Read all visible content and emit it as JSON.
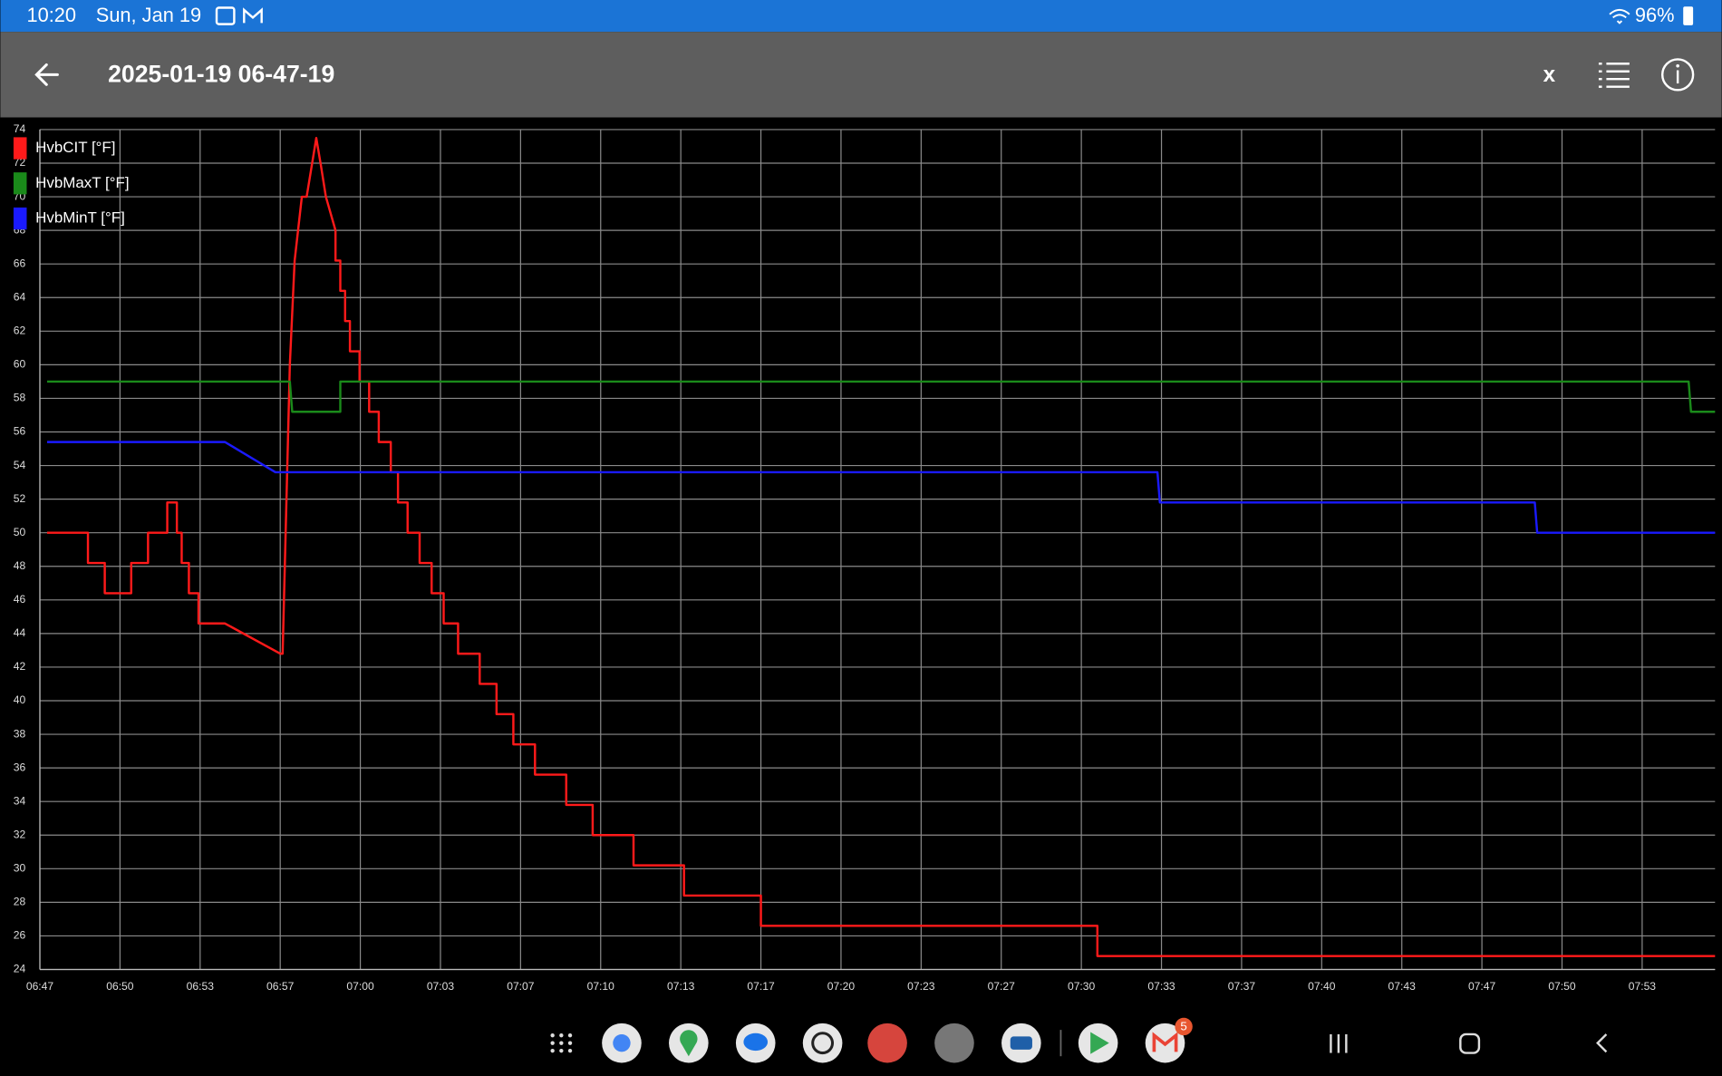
{
  "status_bar": {
    "time": "10:20",
    "date": "Sun, Jan 19",
    "battery": "96%"
  },
  "app_bar": {
    "title": "2025-01-19 06-47-19",
    "close_label": "x"
  },
  "nav_bar": {
    "gmail_badge": "5"
  },
  "chart_data": {
    "type": "line",
    "legend": "top-left",
    "grid": true,
    "xlim": [
      407,
      476.7
    ],
    "xticks": [
      {
        "value": 407,
        "label": "06:47"
      },
      {
        "value": 410.333,
        "label": "06:50"
      },
      {
        "value": 413.667,
        "label": "06:53"
      },
      {
        "value": 417,
        "label": "06:57"
      },
      {
        "value": 420.333,
        "label": "07:00"
      },
      {
        "value": 423.667,
        "label": "07:03"
      },
      {
        "value": 427,
        "label": "07:07"
      },
      {
        "value": 430.333,
        "label": "07:10"
      },
      {
        "value": 433.667,
        "label": "07:13"
      },
      {
        "value": 437,
        "label": "07:17"
      },
      {
        "value": 440.333,
        "label": "07:20"
      },
      {
        "value": 443.667,
        "label": "07:23"
      },
      {
        "value": 447,
        "label": "07:27"
      },
      {
        "value": 450.333,
        "label": "07:30"
      },
      {
        "value": 453.667,
        "label": "07:33"
      },
      {
        "value": 457,
        "label": "07:37"
      },
      {
        "value": 460.333,
        "label": "07:40"
      },
      {
        "value": 463.667,
        "label": "07:43"
      },
      {
        "value": 467,
        "label": "07:47"
      },
      {
        "value": 470.333,
        "label": "07:50"
      },
      {
        "value": 473.667,
        "label": "07:53"
      }
    ],
    "ylim": [
      24,
      74
    ],
    "yticks": [
      24,
      26,
      28,
      30,
      32,
      34,
      36,
      38,
      40,
      42,
      44,
      46,
      48,
      50,
      52,
      54,
      56,
      58,
      60,
      62,
      64,
      66,
      68,
      70,
      72,
      74
    ],
    "series": [
      {
        "name": "HvbCIT [°F]",
        "color": "#ff1a1a",
        "x": [
          407.3,
          409.0,
          409.0,
          409.7,
          409.7,
          410.8,
          410.8,
          411.5,
          411.5,
          412.3,
          412.3,
          412.7,
          412.7,
          412.9,
          412.9,
          413.2,
          413.2,
          413.6,
          413.6,
          414.7,
          417.0,
          417.1,
          417.4,
          417.6,
          417.9,
          418.1,
          418.5,
          418.7,
          418.9,
          419.3,
          419.3,
          419.5,
          419.5,
          419.7,
          419.7,
          419.9,
          419.9,
          420.3,
          420.3,
          420.7,
          420.7,
          421.1,
          421.1,
          421.6,
          421.6,
          421.9,
          421.9,
          422.3,
          422.3,
          422.8,
          422.8,
          423.3,
          423.3,
          423.8,
          423.8,
          424.4,
          424.4,
          425.3,
          425.3,
          426.0,
          426.0,
          426.7,
          426.7,
          427.6,
          427.6,
          428.9,
          428.9,
          430.0,
          430.0,
          431.7,
          431.7,
          433.8,
          433.8,
          437.0,
          437.0,
          451.0,
          451.0,
          476.7
        ],
        "values": [
          50,
          50,
          48.2,
          48.2,
          46.4,
          46.4,
          48.2,
          48.2,
          50,
          50,
          51.8,
          51.8,
          50,
          50,
          48.2,
          48.2,
          46.4,
          46.4,
          44.6,
          44.6,
          42.8,
          42.8,
          60,
          66.2,
          70,
          70,
          73.5,
          71.8,
          70,
          68,
          66.2,
          66.2,
          64.4,
          64.4,
          62.6,
          62.6,
          60.8,
          60.8,
          59,
          59,
          57.2,
          57.2,
          55.4,
          55.4,
          53.6,
          53.6,
          51.8,
          51.8,
          50,
          50,
          48.2,
          48.2,
          46.4,
          46.4,
          44.6,
          44.6,
          42.8,
          42.8,
          41,
          41,
          39.2,
          39.2,
          37.4,
          37.4,
          35.6,
          35.6,
          33.8,
          33.8,
          32,
          32,
          30.2,
          30.2,
          28.4,
          28.4,
          26.6,
          26.6,
          24.8,
          24.8
        ]
      },
      {
        "name": "HvbMaxT [°F]",
        "color": "#1a8a1a",
        "x": [
          407.3,
          417.4,
          417.5,
          419.5,
          419.5,
          475.6,
          475.7,
          476.7
        ],
        "values": [
          59,
          59,
          57.2,
          57.2,
          59,
          59,
          57.2,
          57.2
        ]
      },
      {
        "name": "HvbMinT [°F]",
        "color": "#1a1aff",
        "x": [
          407.3,
          414.7,
          416.8,
          453.5,
          453.6,
          469.2,
          469.3,
          476.7
        ],
        "values": [
          55.4,
          55.4,
          53.6,
          53.6,
          51.8,
          51.8,
          50,
          50
        ]
      }
    ]
  }
}
